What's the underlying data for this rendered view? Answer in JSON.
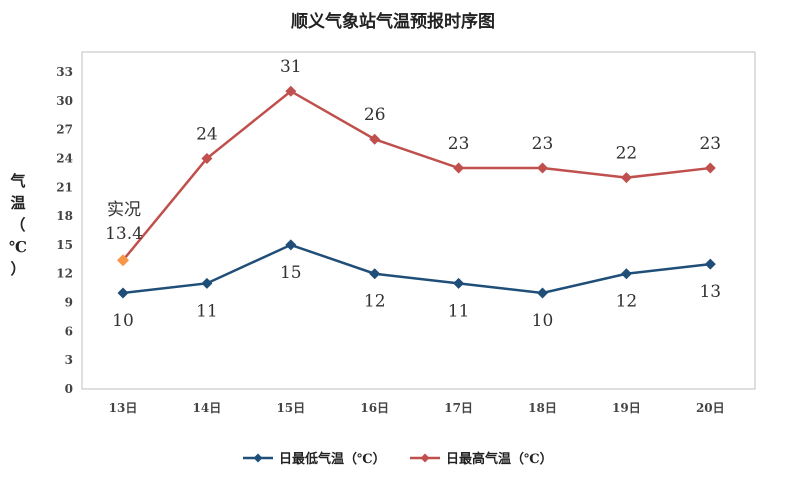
{
  "chart_data": {
    "type": "line",
    "title": "顺义气象站气温预报时序图",
    "ylabel": "气温（℃）",
    "xlabel": "",
    "ylim": [
      0,
      33
    ],
    "yticks": [
      0,
      3,
      6,
      9,
      12,
      15,
      18,
      21,
      24,
      27,
      30,
      33
    ],
    "ytick_labels": [
      "0",
      "3",
      "6",
      "9",
      "12",
      "15",
      "18",
      "21",
      "24",
      "27",
      "30",
      "33"
    ],
    "categories": [
      "13日",
      "14日",
      "15日",
      "16日",
      "17日",
      "18日",
      "19日",
      "20日"
    ],
    "grid": false,
    "legend_position": "bottom",
    "series": [
      {
        "name": "日最低气温（℃）",
        "color": "#1F4E79",
        "values": [
          10,
          11,
          15,
          12,
          11,
          10,
          12,
          13
        ],
        "labels": [
          "10",
          "11",
          "15",
          "12",
          "11",
          "10",
          "12",
          "13"
        ]
      },
      {
        "name": "日最高气温（℃）",
        "color": "#C0504D",
        "values": [
          13.4,
          24,
          31,
          26,
          23,
          23,
          22,
          23
        ],
        "labels": [
          "13.4",
          "24",
          "31",
          "26",
          "23",
          "23",
          "22",
          "23"
        ]
      }
    ],
    "annotation": {
      "text": "实况",
      "value_label": "13.4",
      "category": "13日",
      "color": "#F79646"
    }
  }
}
